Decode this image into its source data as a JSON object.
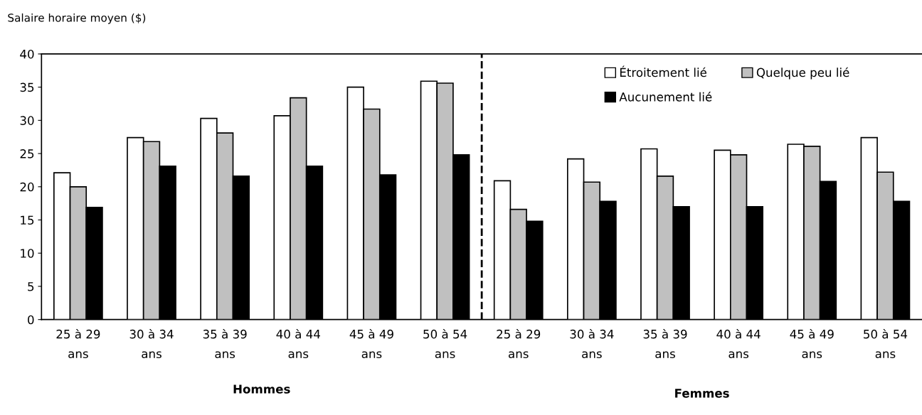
{
  "chart_data": {
    "type": "bar",
    "ylabel": "Salaire horaire moyen ($)",
    "categories": [
      "25 à 29 ans",
      "30 à 34 ans",
      "35 à 39 ans",
      "40 à 44 ans",
      "45 à 49 ans",
      "50 à 54 ans",
      "25 à 29 ans",
      "30 à 34 ans",
      "35 à 39 ans",
      "40 à 44 ans",
      "45 à 49 ans",
      "50 à 54 ans"
    ],
    "series": [
      {
        "name": "Étroitement lié",
        "color": "#ffffff",
        "values": [
          22.1,
          27.4,
          30.3,
          30.7,
          35.0,
          35.9,
          20.9,
          24.2,
          25.7,
          25.5,
          26.4,
          27.4
        ]
      },
      {
        "name": "Quelque peu lié",
        "color": "#c0c0c0",
        "values": [
          20.0,
          26.8,
          28.1,
          33.4,
          31.7,
          35.6,
          16.6,
          20.7,
          21.6,
          24.8,
          26.1,
          22.2
        ]
      },
      {
        "name": "Aucunement lié",
        "color": "#000000",
        "values": [
          16.9,
          23.1,
          21.6,
          23.1,
          21.8,
          24.8,
          14.8,
          17.8,
          17.0,
          17.0,
          20.8,
          17.8
        ]
      }
    ],
    "ylim": [
      0,
      40
    ],
    "yticks": [
      0,
      5,
      10,
      15,
      20,
      25,
      30,
      35,
      40
    ],
    "annotations": [
      "Hommes",
      "Femmes"
    ],
    "legend": "top right",
    "grid": false
  }
}
